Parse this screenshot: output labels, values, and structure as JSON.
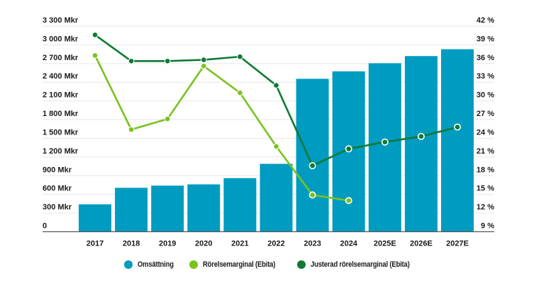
{
  "chart_data": {
    "type": "bar",
    "title": "",
    "categories": [
      "2017",
      "2018",
      "2019",
      "2020",
      "2021",
      "2022",
      "2023",
      "2024",
      "2025E",
      "2026E",
      "2027E"
    ],
    "series": [
      {
        "name": "Omsättning",
        "type": "bar",
        "axis": "left",
        "color": "#009bc0",
        "values": [
          440,
          705,
          740,
          760,
          860,
          1090,
          2455,
          2575,
          2705,
          2820,
          2930
        ]
      },
      {
        "name": "Rörelsemarginal (Ebita)",
        "type": "line",
        "axis": "right",
        "color": "#7ac21e",
        "values": [
          37.3,
          25.4,
          27.1,
          35.6,
          31.3,
          22.7,
          14.9,
          14.0,
          null,
          null,
          null
        ]
      },
      {
        "name": "Justerad rörelsemarginal (Ebita)",
        "type": "line",
        "axis": "right",
        "color": "#0f7a33",
        "values": [
          40.6,
          36.4,
          36.4,
          36.6,
          37.1,
          32.5,
          19.6,
          22.3,
          23.4,
          24.3,
          25.8
        ]
      }
    ],
    "left_axis": {
      "ylim": [
        0,
        3300
      ],
      "ticks": [
        0,
        300,
        600,
        900,
        1200,
        1500,
        1800,
        2100,
        2400,
        2700,
        3000,
        3300
      ],
      "tick_labels": [
        "0",
        "300 Mkr",
        "600 Mkr",
        "900 Mkr",
        "1 200 Mkr",
        "1 500 Mkr",
        "1 800 Mkr",
        "2 100 Mkr",
        "2 400 Mkr",
        "2 700 Mkr",
        "3 000 Mkr",
        "3 300 Mkr"
      ],
      "label": ""
    },
    "right_axis": {
      "ylim": [
        9,
        42
      ],
      "ticks": [
        9,
        12,
        15,
        18,
        21,
        24,
        27,
        30,
        33,
        36,
        39,
        42
      ],
      "tick_labels": [
        "9 %",
        "12 %",
        "15 %",
        "18 %",
        "21 %",
        "24 %",
        "27 %",
        "30 %",
        "33 %",
        "36 %",
        "39 %",
        "42 %"
      ],
      "label": ""
    },
    "xlabel": "",
    "grid": true,
    "legend_position": "bottom-center"
  },
  "legend": [
    {
      "label": "Omsättning",
      "color": "#009bc0"
    },
    {
      "label": "Rörelsemarginal (Ebita)",
      "color": "#7ac21e"
    },
    {
      "label": "Justerad rörelsemarginal (Ebita)",
      "color": "#0f7a33"
    }
  ]
}
